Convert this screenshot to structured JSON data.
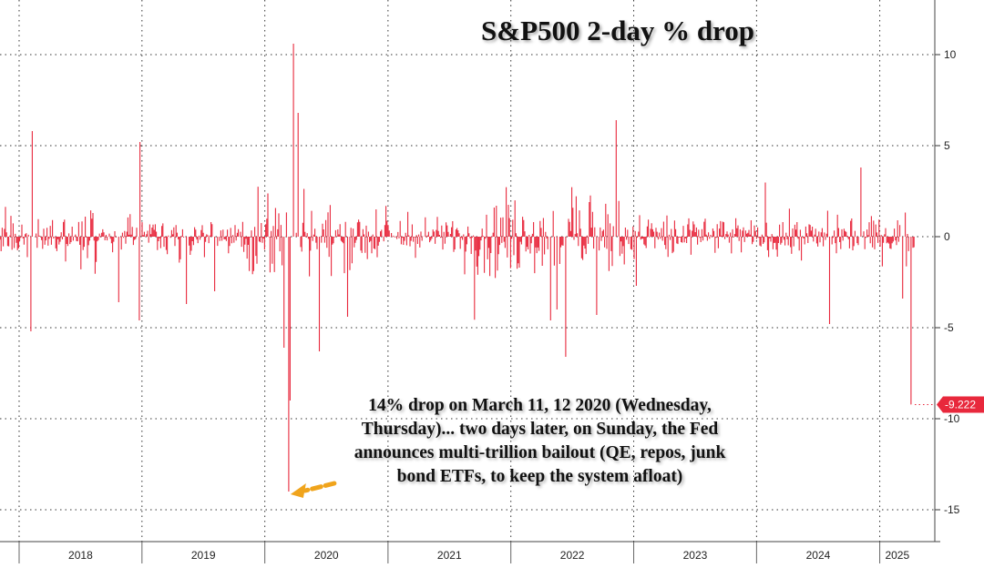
{
  "chart_data": {
    "type": "bar",
    "title": "S&P500 2-day % drop",
    "xlabel": "",
    "ylabel": "",
    "x_tick_labels": [
      "2018",
      "2019",
      "2020",
      "2021",
      "2022",
      "2023",
      "2024",
      "2025"
    ],
    "y_ticks": [
      10,
      5,
      0,
      -5,
      -10,
      -15
    ],
    "ylim": [
      -16,
      13
    ],
    "grid": true,
    "legend": "none",
    "last_value": -9.222,
    "last_value_label": "-9.222",
    "bar_color": "#e8283c",
    "series": [
      {
        "type": "bar",
        "key_points": [
          {
            "date": "2018-02-05",
            "value": -5.2
          },
          {
            "date": "2018-02-09",
            "value": 5.8
          },
          {
            "date": "2018-10-24",
            "value": -3.6
          },
          {
            "date": "2018-12-24",
            "value": -4.6
          },
          {
            "date": "2018-12-26",
            "value": 5.2
          },
          {
            "date": "2019-05-13",
            "value": -3.7
          },
          {
            "date": "2019-08-05",
            "value": -3.0
          },
          {
            "date": "2020-02-27",
            "value": -6.1
          },
          {
            "date": "2020-03-12",
            "value": -14.0
          },
          {
            "date": "2020-03-16",
            "value": -9.0
          },
          {
            "date": "2020-03-26",
            "value": 10.6
          },
          {
            "date": "2020-04-09",
            "value": 6.8
          },
          {
            "date": "2020-06-11",
            "value": -6.3
          },
          {
            "date": "2020-09-03",
            "value": -4.4
          },
          {
            "date": "2022-04-29",
            "value": -4.6
          },
          {
            "date": "2022-05-18",
            "value": -4.0
          },
          {
            "date": "2022-06-13",
            "value": -6.6
          },
          {
            "date": "2022-09-13",
            "value": -4.3
          },
          {
            "date": "2022-11-10",
            "value": 6.4
          },
          {
            "date": "2024-08-05",
            "value": -4.8
          },
          {
            "date": "2024-11-06",
            "value": 3.8
          },
          {
            "date": "2025-03-10",
            "value": -3.4
          },
          {
            "date": "2025-04-04",
            "value": -9.222
          }
        ]
      }
    ]
  },
  "annotation": {
    "lines": [
      "14% drop on March 11, 12 2020 (Wednesday,",
      "Thursday)... two days later, on Sunday, the Fed",
      "announces multi-trillion bailout (QE, repos, junk",
      "bond ETFs, to keep the system afloat)"
    ],
    "arrow_color": "#f0a41c"
  }
}
